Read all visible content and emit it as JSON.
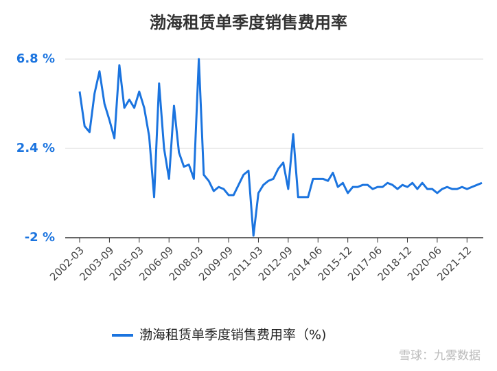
{
  "chart_data": {
    "type": "line",
    "title": "渤海租赁单季度销售费用率",
    "categories": [
      "2002-03",
      null,
      null,
      null,
      null,
      null,
      "2003-09",
      null,
      null,
      null,
      null,
      null,
      "2005-03",
      null,
      null,
      null,
      null,
      null,
      "2006-09",
      null,
      null,
      null,
      null,
      null,
      "2008-03",
      null,
      null,
      null,
      null,
      null,
      "2009-09",
      null,
      null,
      null,
      null,
      null,
      "2011-03",
      null,
      null,
      null,
      null,
      null,
      "2012-09",
      null,
      null,
      null,
      null,
      null,
      "2014-06",
      null,
      null,
      null,
      null,
      null,
      "2015-12",
      null,
      null,
      null,
      null,
      null,
      "2017-06",
      null,
      null,
      null,
      null,
      null,
      "2018-12",
      null,
      null,
      null,
      null,
      null,
      "2020-06",
      null,
      null,
      null,
      null,
      null,
      "2021-12",
      null,
      null,
      null
    ],
    "series": [
      {
        "name": "渤海租赁单季度销售费用率（%)",
        "color": "#1b74df",
        "values": [
          5.2,
          3.5,
          3.2,
          5.1,
          6.2,
          4.6,
          3.8,
          2.9,
          6.5,
          4.4,
          4.8,
          4.4,
          5.2,
          4.4,
          3.0,
          0.0,
          5.6,
          2.4,
          0.9,
          4.5,
          2.2,
          1.5,
          1.6,
          0.9,
          6.8,
          1.1,
          0.8,
          0.3,
          0.5,
          0.4,
          0.1,
          0.1,
          0.6,
          1.1,
          1.3,
          -1.9,
          0.2,
          0.6,
          0.8,
          0.9,
          1.4,
          1.7,
          0.4,
          3.1,
          0.0,
          0.0,
          0.0,
          0.9,
          0.9,
          0.9,
          0.8,
          1.2,
          0.5,
          0.7,
          0.2,
          0.5,
          0.5,
          0.6,
          0.6,
          0.4,
          0.5,
          0.5,
          0.7,
          0.6,
          0.4,
          0.6,
          0.5,
          0.7,
          0.4,
          0.7,
          0.4,
          0.4,
          0.2,
          0.4,
          0.5,
          0.4,
          0.4,
          0.5,
          0.4,
          0.5,
          0.6,
          0.7
        ]
      }
    ],
    "ylim": [
      -2,
      6.8
    ],
    "yticks": [
      {
        "value": 6.8,
        "label": "6.8 %"
      },
      {
        "value": 2.4,
        "label": "2.4 %"
      },
      {
        "value": -2,
        "label": "-2 %"
      }
    ],
    "grid": true,
    "watermark": "雪球：九雾数据"
  }
}
